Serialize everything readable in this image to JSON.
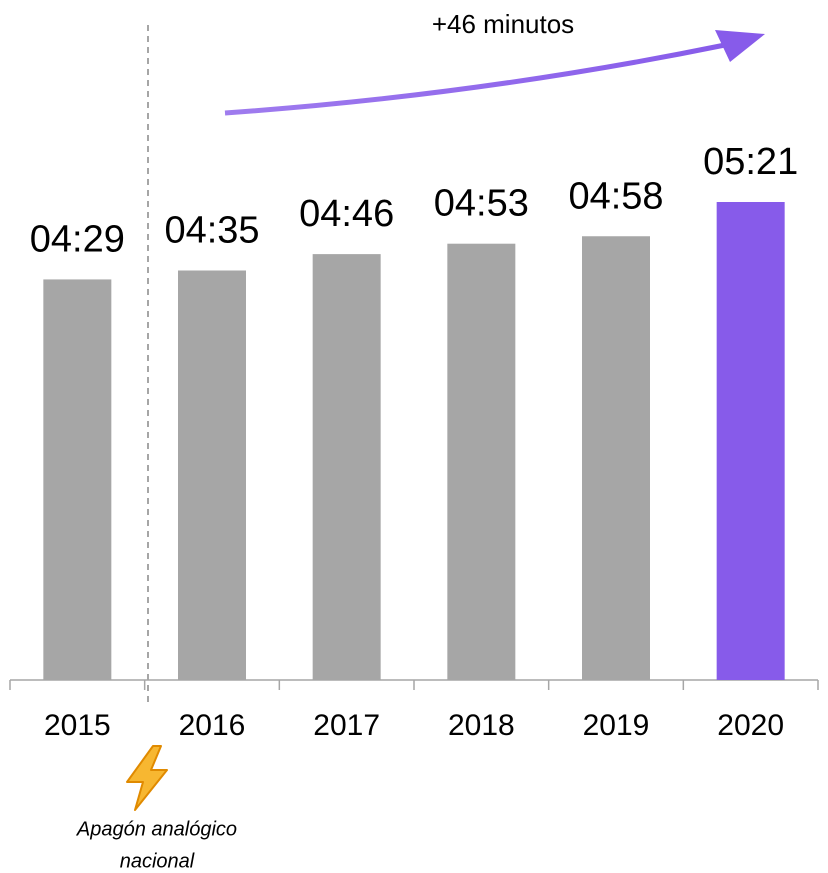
{
  "chart_data": {
    "type": "bar",
    "categories": [
      "2015",
      "2016",
      "2017",
      "2018",
      "2019",
      "2020"
    ],
    "values": [
      269,
      275,
      286,
      293,
      298,
      321
    ],
    "value_labels": [
      "04:29",
      "04:35",
      "04:46",
      "04:53",
      "04:58",
      "05:21"
    ],
    "colors": [
      "#a6a6a6",
      "#a6a6a6",
      "#a6a6a6",
      "#a6a6a6",
      "#a6a6a6",
      "#875bea"
    ],
    "ylim": [
      0,
      321
    ],
    "annotations": {
      "trend": "+46 minutos",
      "event": [
        "Apagón analógico",
        "nacional"
      ]
    }
  }
}
